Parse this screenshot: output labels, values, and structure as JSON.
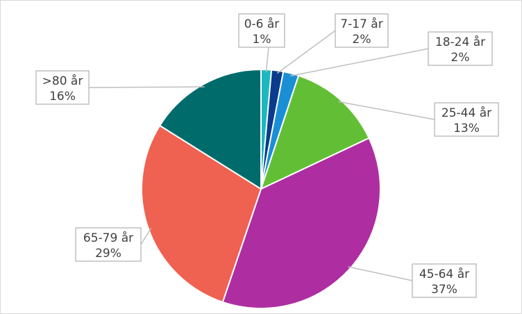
{
  "chart_data": {
    "type": "pie",
    "title": "",
    "start_angle_deg": 0,
    "direction": "clockwise",
    "slices": [
      {
        "label": "0-6 år",
        "value_label": "1%",
        "value": 1.4,
        "color": "#1cb8c0"
      },
      {
        "label": "7-17 år",
        "value_label": "2%",
        "value": 1.6,
        "color": "#0a3b8c"
      },
      {
        "label": "18-24 år",
        "value_label": "2%",
        "value": 2.1,
        "color": "#1a8fd6"
      },
      {
        "label": "25-44 år",
        "value_label": "13%",
        "value": 12.9,
        "color": "#62bf35"
      },
      {
        "label": "45-64 år",
        "value_label": "37%",
        "value": 37.2,
        "color": "#ae2ea1"
      },
      {
        "label": "65-79 år",
        "value_label": "29%",
        "value": 28.7,
        "color": "#ef6150"
      },
      {
        ">80 år": null,
        "label": ">80 år",
        "value_label": "16%",
        "value": 16.1,
        "color": "#006b6b"
      }
    ]
  }
}
